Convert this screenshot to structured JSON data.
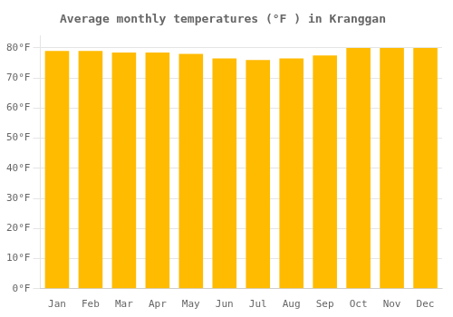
{
  "chart_data": {
    "type": "bar",
    "title": "Average monthly temperatures (°F ) in Kranggan",
    "categories": [
      "Jan",
      "Feb",
      "Mar",
      "Apr",
      "May",
      "Jun",
      "Jul",
      "Aug",
      "Sep",
      "Oct",
      "Nov",
      "Dec"
    ],
    "values": [
      79.0,
      79.0,
      78.5,
      78.5,
      78.0,
      76.5,
      76.0,
      76.5,
      77.5,
      80.0,
      80.0,
      80.0
    ],
    "color": "#FFBB00",
    "ylim": [
      0,
      84
    ],
    "yticks": [
      {
        "value": 0,
        "label": "0°F"
      },
      {
        "value": 10,
        "label": "10°F"
      },
      {
        "value": 20,
        "label": "20°F"
      },
      {
        "value": 30,
        "label": "30°F"
      },
      {
        "value": 40,
        "label": "40°F"
      },
      {
        "value": 50,
        "label": "50°F"
      },
      {
        "value": 60,
        "label": "60°F"
      },
      {
        "value": 70,
        "label": "70°F"
      },
      {
        "value": 80,
        "label": "80°F"
      }
    ],
    "grid": true
  }
}
